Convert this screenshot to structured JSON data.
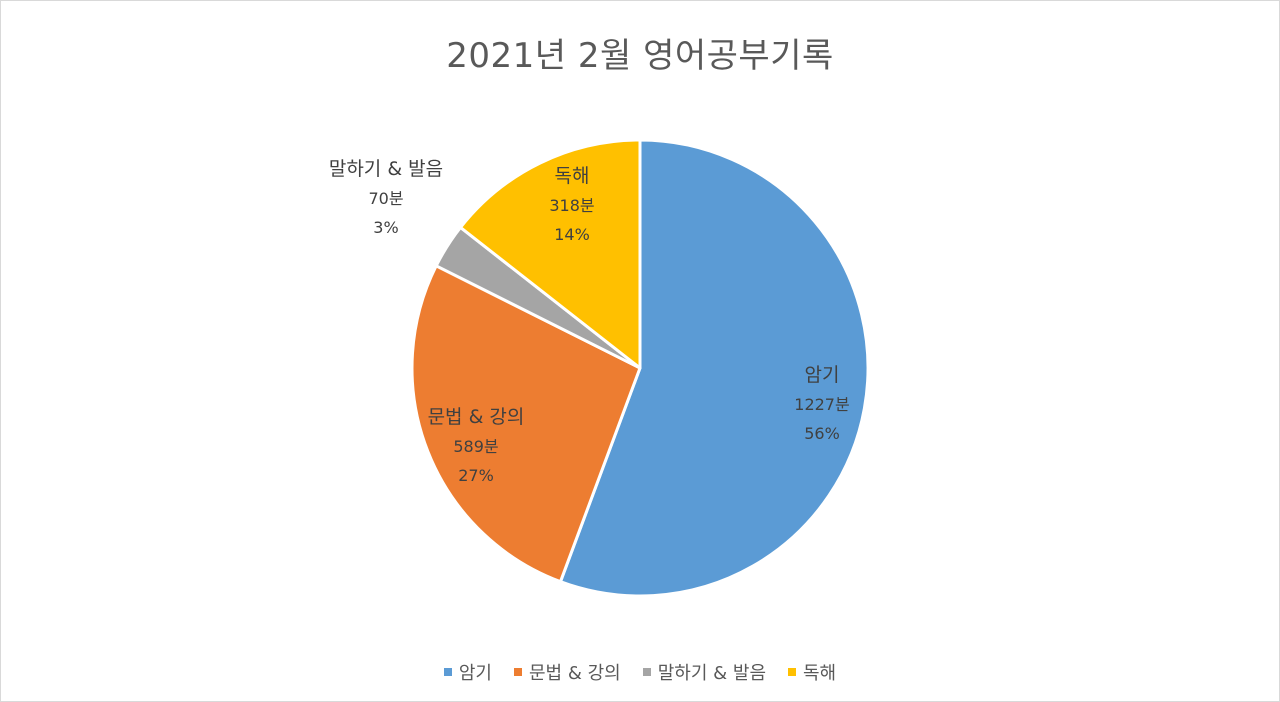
{
  "chart_data": {
    "type": "pie",
    "title": "2021년 2월 영어공부기록",
    "categories": [
      "암기",
      "문법 & 강의",
      "말하기 & 발음",
      "독해"
    ],
    "values": [
      1227,
      589,
      70,
      318
    ],
    "value_labels": [
      "1227분",
      "589분",
      "70분",
      "318분"
    ],
    "percent_labels": [
      "56%",
      "27%",
      "3%",
      "14%"
    ],
    "colors": [
      "#5b9bd5",
      "#ed7d31",
      "#a5a5a5",
      "#ffc000"
    ],
    "start_angle_deg": 0,
    "direction": "clockwise",
    "legend_position": "bottom"
  }
}
